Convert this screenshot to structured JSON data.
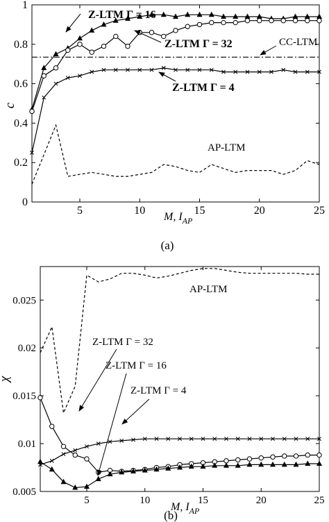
{
  "chart_data": [
    {
      "type": "line",
      "panel_label": "(a)",
      "xlabel": "M, I",
      "xlabel_sub": "AP",
      "ylabel": "c",
      "xlim": [
        1,
        25
      ],
      "ylim": [
        0,
        1
      ],
      "xticks": [
        5,
        10,
        15,
        20,
        25
      ],
      "yticks": [
        0,
        0.2,
        0.4,
        0.6,
        0.8,
        1
      ],
      "ytick_labels": [
        "0",
        "0.2",
        "0.4",
        "0.6",
        "0.8",
        "1"
      ],
      "grid": false,
      "legend": "none (inline annotations)",
      "annotations": [
        "Z-LTM Γ = 16",
        "Z-LTM Γ = 32",
        "CC-LTM",
        "Z-LTM Γ = 4",
        "AP-LTM"
      ],
      "series": [
        {
          "name": "Z-LTM Γ = 16",
          "marker": "triangle",
          "style": "solid",
          "x": [
            1,
            2,
            3,
            4,
            5,
            6,
            7,
            8,
            9,
            10,
            11,
            12,
            13,
            14,
            15,
            16,
            17,
            18,
            19,
            20,
            21,
            22,
            23,
            24,
            25
          ],
          "y": [
            0.47,
            0.68,
            0.75,
            0.78,
            0.83,
            0.87,
            0.9,
            0.92,
            0.93,
            0.94,
            0.95,
            0.95,
            0.94,
            0.95,
            0.95,
            0.95,
            0.94,
            0.94,
            0.94,
            0.94,
            0.93,
            0.93,
            0.94,
            0.94,
            0.94
          ]
        },
        {
          "name": "Z-LTM Γ = 32",
          "marker": "circle",
          "style": "solid",
          "x": [
            1,
            2,
            3,
            4,
            5,
            6,
            7,
            8,
            9,
            10,
            11,
            12,
            13,
            14,
            15,
            16,
            17,
            18,
            19,
            20,
            21,
            22,
            23,
            24,
            25
          ],
          "y": [
            0.46,
            0.64,
            0.68,
            0.77,
            0.8,
            0.76,
            0.79,
            0.84,
            0.79,
            0.86,
            0.86,
            0.84,
            0.87,
            0.89,
            0.9,
            0.91,
            0.91,
            0.91,
            0.92,
            0.92,
            0.92,
            0.92,
            0.92,
            0.92,
            0.92
          ]
        },
        {
          "name": "CC-LTM",
          "marker": "none",
          "style": "dash-dot",
          "x": [
            1,
            25
          ],
          "y": [
            0.735,
            0.735
          ]
        },
        {
          "name": "Z-LTM Γ = 4",
          "marker": "x",
          "style": "solid",
          "x": [
            1,
            2,
            3,
            4,
            5,
            6,
            7,
            8,
            9,
            10,
            11,
            12,
            13,
            14,
            15,
            16,
            17,
            18,
            19,
            20,
            21,
            22,
            23,
            24,
            25
          ],
          "y": [
            0.25,
            0.53,
            0.6,
            0.63,
            0.64,
            0.66,
            0.67,
            0.67,
            0.67,
            0.67,
            0.67,
            0.68,
            0.67,
            0.67,
            0.67,
            0.67,
            0.66,
            0.66,
            0.66,
            0.66,
            0.66,
            0.67,
            0.66,
            0.66,
            0.66
          ]
        },
        {
          "name": "AP-LTM",
          "marker": "none",
          "style": "dashed",
          "x": [
            1,
            2,
            3,
            4,
            5,
            6,
            7,
            8,
            9,
            10,
            11,
            12,
            13,
            14,
            15,
            16,
            17,
            18,
            19,
            20,
            21,
            22,
            23,
            24,
            25
          ],
          "y": [
            0.09,
            0.24,
            0.39,
            0.13,
            0.14,
            0.15,
            0.14,
            0.13,
            0.13,
            0.14,
            0.15,
            0.19,
            0.18,
            0.16,
            0.15,
            0.19,
            0.17,
            0.15,
            0.16,
            0.16,
            0.16,
            0.14,
            0.16,
            0.21,
            0.19
          ]
        }
      ]
    },
    {
      "type": "line",
      "panel_label": "(b)",
      "xlabel": "M,  I",
      "xlabel_sub": "AP",
      "ylabel": "χ",
      "xlim": [
        1,
        25
      ],
      "ylim": [
        0.005,
        0.0285
      ],
      "xticks": [
        5,
        10,
        15,
        20,
        25
      ],
      "yticks": [
        0.005,
        0.01,
        0.015,
        0.02,
        0.025
      ],
      "ytick_labels": [
        "0.005",
        "0.01",
        "0.015",
        "0.02",
        "0.025"
      ],
      "grid": false,
      "legend": "none (inline annotations)",
      "annotations": [
        "AP-LTM",
        "Z-LTM Γ = 32",
        "Z-LTM Γ = 16",
        "Z-LTM Γ = 4"
      ],
      "series": [
        {
          "name": "AP-LTM",
          "marker": "none",
          "style": "dashed",
          "x": [
            1,
            2,
            3,
            4,
            5,
            6,
            7,
            8,
            9,
            10,
            11,
            12,
            13,
            14,
            15,
            16,
            17,
            18,
            19,
            20,
            21,
            22,
            23,
            24,
            25
          ],
          "y": [
            0.0195,
            0.0222,
            0.0132,
            0.016,
            0.0276,
            0.0269,
            0.0272,
            0.0278,
            0.0278,
            0.0276,
            0.0273,
            0.0275,
            0.0278,
            0.0281,
            0.0283,
            0.0283,
            0.0281,
            0.0279,
            0.0278,
            0.0278,
            0.0278,
            0.0278,
            0.0278,
            0.0277,
            0.0277
          ]
        },
        {
          "name": "Z-LTM Γ = 32",
          "marker": "circle",
          "style": "solid",
          "x": [
            1,
            2,
            3,
            4,
            5,
            6,
            7,
            8,
            9,
            10,
            11,
            12,
            13,
            14,
            15,
            16,
            17,
            18,
            19,
            20,
            21,
            22,
            23,
            24,
            25
          ],
          "y": [
            0.0148,
            0.0118,
            0.0097,
            0.0088,
            0.0084,
            0.007,
            0.0072,
            0.0071,
            0.0072,
            0.0073,
            0.0075,
            0.0076,
            0.0078,
            0.0079,
            0.008,
            0.0081,
            0.0082,
            0.0083,
            0.0084,
            0.0085,
            0.0086,
            0.0087,
            0.0087,
            0.0088,
            0.0088
          ]
        },
        {
          "name": "Z-LTM Γ = 16",
          "marker": "triangle",
          "style": "solid",
          "x": [
            1,
            2,
            3,
            4,
            5,
            6,
            7,
            8,
            9,
            10,
            11,
            12,
            13,
            14,
            15,
            16,
            17,
            18,
            19,
            20,
            21,
            22,
            23,
            24,
            25
          ],
          "y": [
            0.0081,
            0.0073,
            0.006,
            0.0054,
            0.0055,
            0.0063,
            0.0068,
            0.007,
            0.0071,
            0.0072,
            0.0073,
            0.0074,
            0.0075,
            0.0076,
            0.0076,
            0.0077,
            0.0077,
            0.0077,
            0.0078,
            0.0078,
            0.0078,
            0.0078,
            0.0078,
            0.0079,
            0.0079
          ]
        },
        {
          "name": "Z-LTM Γ = 4",
          "marker": "x",
          "style": "solid",
          "x": [
            1,
            2,
            3,
            4,
            5,
            6,
            7,
            8,
            9,
            10,
            11,
            12,
            13,
            14,
            15,
            16,
            17,
            18,
            19,
            20,
            21,
            22,
            23,
            24,
            25
          ],
          "y": [
            0.0078,
            0.0082,
            0.0089,
            0.0093,
            0.0097,
            0.01,
            0.0102,
            0.0103,
            0.0104,
            0.0105,
            0.0105,
            0.0105,
            0.0105,
            0.0105,
            0.0105,
            0.0105,
            0.0105,
            0.0105,
            0.0105,
            0.0105,
            0.0105,
            0.0105,
            0.0105,
            0.0105,
            0.0105
          ]
        }
      ]
    }
  ]
}
